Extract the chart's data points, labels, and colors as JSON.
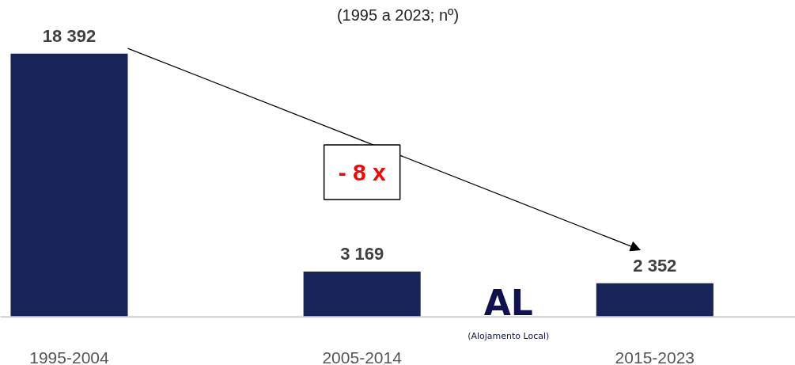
{
  "chart_data": {
    "type": "bar",
    "subtitle": "(1995 a 2023; nº)",
    "categories": [
      "1995-2004",
      "2005-2014",
      "2015-2023"
    ],
    "values": [
      18392,
      3169,
      2352
    ],
    "value_labels": [
      "18 392",
      "3 169",
      "2 352"
    ],
    "color": "#16245a",
    "grid": false,
    "tick_labels": "x",
    "annotations": [
      "- 8 x",
      "AL",
      "(Alojamento Local)"
    ]
  }
}
